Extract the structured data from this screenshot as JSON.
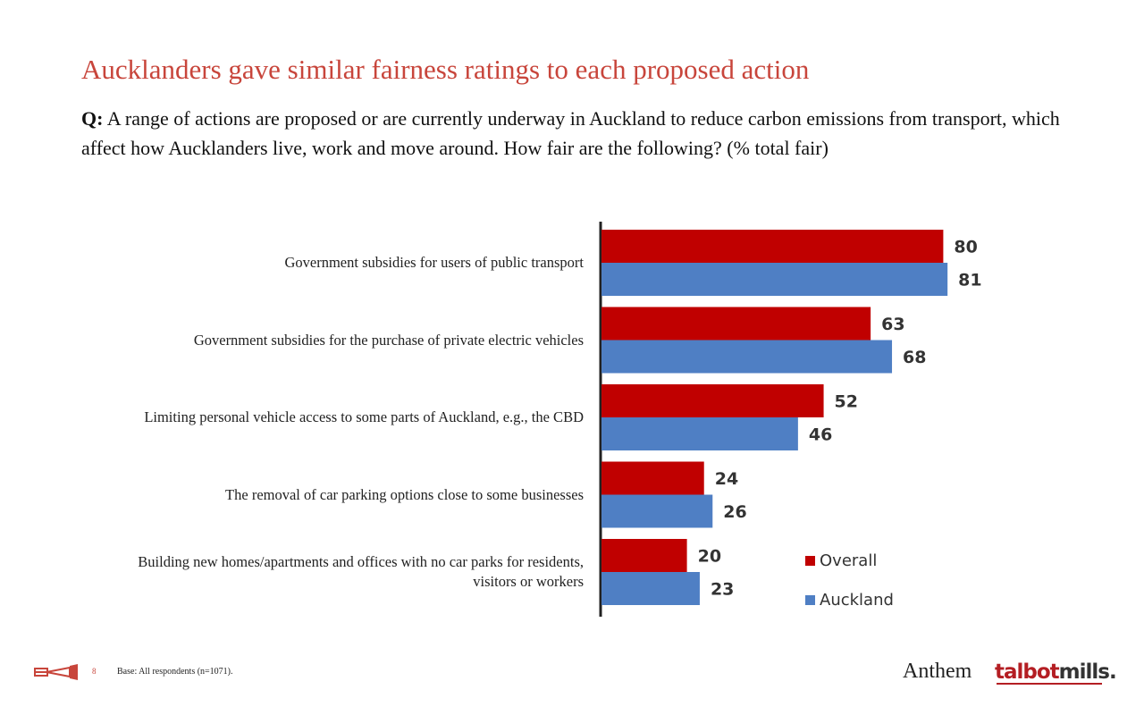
{
  "title": "Aucklanders gave similar fairness ratings to each proposed action",
  "question": {
    "prefix": "Q:",
    "text": "A range of actions are proposed or are currently underway in Auckland to reduce carbon emissions from transport, which affect how Aucklanders live, work and move around. How fair are the following? (% total fair)"
  },
  "chart_data": {
    "type": "bar",
    "orientation": "horizontal",
    "categories": [
      "Government subsidies for users of public transport",
      "Government subsidies for the purchase of private electric vehicles",
      "Limiting personal vehicle access to some parts of Auckland, e.g., the CBD",
      "The removal of car parking options close to some businesses",
      "Building new homes/apartments and offices with no car parks for residents, visitors or workers"
    ],
    "series": [
      {
        "name": "Overall",
        "color": "#c00000",
        "values": [
          80,
          63,
          52,
          24,
          20
        ]
      },
      {
        "name": "Auckland",
        "color": "#4f7fc4",
        "values": [
          81,
          68,
          46,
          26,
          23
        ]
      }
    ],
    "xlim": [
      0,
      100
    ],
    "data_labels": true,
    "grid": false,
    "legend": "bottom-right"
  },
  "footer": {
    "page_number": "8",
    "base": "Base: All respondents (n=1071)."
  },
  "logos": {
    "anthem": "Anthem",
    "talbotmills_part1": "talbot",
    "talbotmills_part2": "mills."
  }
}
